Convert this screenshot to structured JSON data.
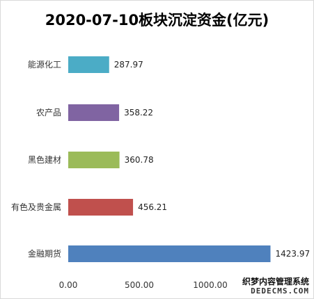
{
  "chart_data": {
    "type": "bar",
    "orientation": "horizontal",
    "title": "2020-07-10板块沉淀资金(亿元)",
    "categories": [
      "能源化工",
      "农产品",
      "黑色建材",
      "有色及贵金属",
      "金融期货"
    ],
    "values": [
      287.97,
      358.22,
      360.78,
      456.21,
      1423.97
    ],
    "value_labels": [
      "287.97",
      "358.22",
      "360.78",
      "456.21",
      "1423.97"
    ],
    "colors": [
      "#4bacc6",
      "#8064a2",
      "#9bbb59",
      "#c0504d",
      "#4f81bd"
    ],
    "xlim": [
      0,
      1500
    ],
    "x_ticks": [
      0,
      500,
      1000
    ],
    "x_tick_labels": [
      "0.00",
      "500.00",
      "1000.00"
    ],
    "grid": false,
    "legend": "none"
  },
  "watermark": {
    "line1": "织梦内容管理系统",
    "line2": "DEDECMS.COM"
  }
}
